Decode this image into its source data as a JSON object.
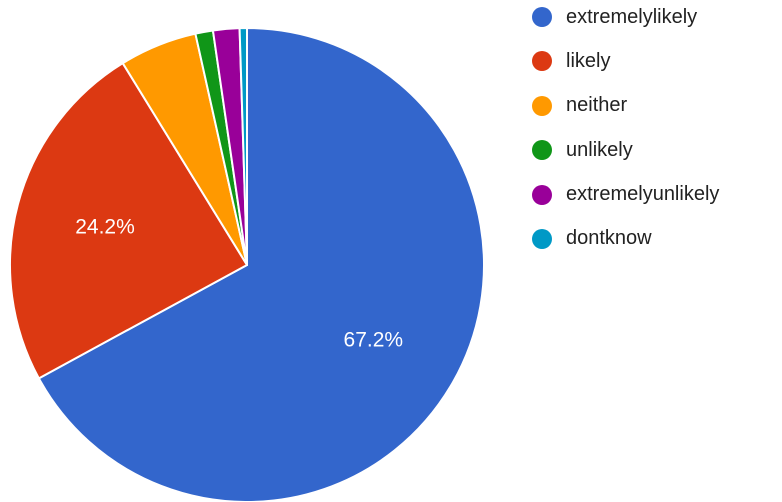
{
  "chart_data": {
    "type": "pie",
    "title": "",
    "categories": [
      "extremelylikely",
      "likely",
      "neither",
      "unlikely",
      "extremelyunlikely",
      "dontknow"
    ],
    "values": [
      67.2,
      24.2,
      5.3,
      1.2,
      1.8,
      0.5
    ],
    "colors": [
      "#3366cc",
      "#dc3912",
      "#ff9900",
      "#109618",
      "#990099",
      "#0099c6"
    ],
    "data_labels": [
      "67.2%",
      "24.2%",
      "",
      "",
      "",
      ""
    ],
    "legend_position": "right",
    "start_angle": "top, clockwise"
  }
}
